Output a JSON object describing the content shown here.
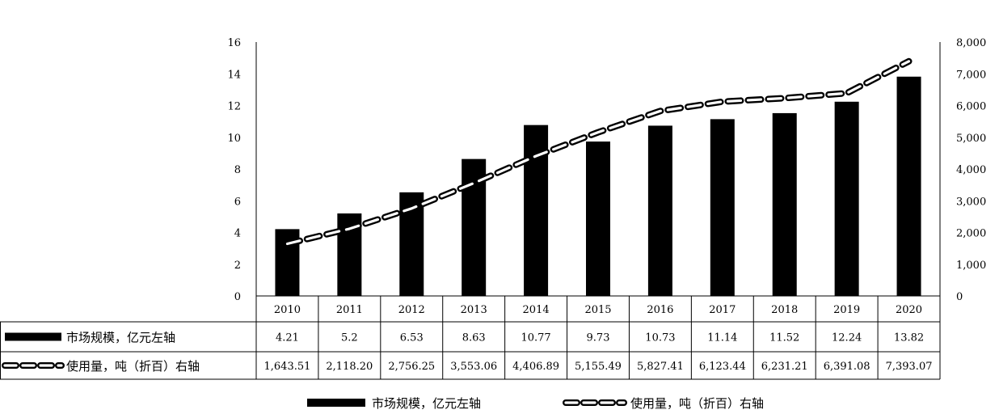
{
  "chart_data": {
    "type": "bar",
    "categories": [
      "2010",
      "2011",
      "2012",
      "2013",
      "2014",
      "2015",
      "2016",
      "2017",
      "2018",
      "2019",
      "2020"
    ],
    "series": [
      {
        "name": "市场规模，亿元左轴",
        "kind": "bar",
        "axis": "left",
        "color": "#000000",
        "values": [
          4.21,
          5.2,
          6.53,
          8.63,
          10.77,
          9.73,
          10.73,
          11.14,
          11.52,
          12.24,
          13.82
        ],
        "labels": [
          "4.21",
          "5.2",
          "6.53",
          "8.63",
          "10.77",
          "9.73",
          "10.73",
          "11.14",
          "11.52",
          "12.24",
          "13.82"
        ]
      },
      {
        "name": "使用量，吨（折百）右轴",
        "kind": "line-dashed",
        "axis": "right",
        "color": "#000000",
        "values": [
          1643.51,
          2118.2,
          2756.25,
          3553.06,
          4406.89,
          5155.49,
          5827.41,
          6123.44,
          6231.21,
          6391.08,
          7393.07
        ],
        "labels": [
          "1,643.51",
          "2,118.20",
          "2,756.25",
          "3,553.06",
          "4,406.89",
          "5,155.49",
          "5,827.41",
          "6,123.44",
          "6,231.21",
          "6,391.08",
          "7,393.07"
        ]
      }
    ],
    "y_left": {
      "ylim": [
        0,
        16
      ],
      "ticks": [
        "0",
        "2",
        "4",
        "6",
        "8",
        "10",
        "12",
        "14",
        "16"
      ]
    },
    "y_right": {
      "ylim": [
        0,
        8000
      ],
      "ticks": [
        "0",
        "1,000",
        "2,000",
        "3,000",
        "4,000",
        "5,000",
        "6,000",
        "7,000",
        "8,000"
      ]
    },
    "title": "",
    "xlabel": "",
    "ylabel": "",
    "grid": false,
    "legend_position": "bottom",
    "data_table": true
  }
}
